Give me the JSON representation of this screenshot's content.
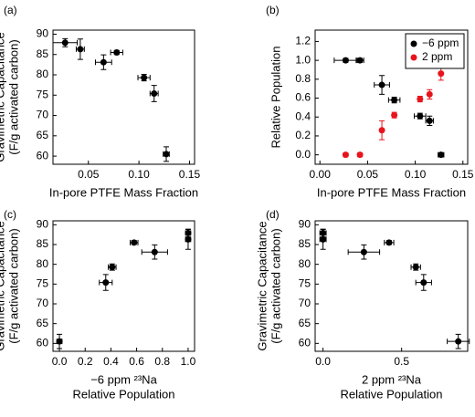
{
  "chart_data": [
    {
      "type": "scatter",
      "panel_label": "(a)",
      "xlabel": [
        "In-pore PTFE Mass Fraction"
      ],
      "ylabel": [
        "Gravimetric Capacitance",
        "(F/g activated carbon)"
      ],
      "xlim": [
        0.015,
        0.155
      ],
      "xticks": [
        0.05,
        {
          "value": 0.1,
          "label": "0.10"
        },
        0.15
      ],
      "ylim": [
        58,
        91
      ],
      "yticks": [
        60,
        65,
        70,
        75,
        80,
        85,
        90
      ],
      "series": [
        {
          "color": "#000000",
          "x": [
            0.027,
            0.042,
            0.065,
            0.078,
            0.105,
            0.115,
            0.127
          ],
          "values": [
            87.9,
            86.3,
            83.1,
            85.5,
            79.3,
            75.4,
            60.5
          ],
          "xerr": [
            0.012,
            0.004,
            0.008,
            0.006,
            0.006,
            0.004,
            0.003
          ],
          "yerr": [
            1.0,
            2.5,
            1.8,
            0.5,
            0.8,
            2.0,
            1.8
          ]
        }
      ]
    },
    {
      "type": "scatter",
      "panel_label": "(b)",
      "xlabel": [
        "In-pore PTFE Mass Fraction"
      ],
      "ylabel": [
        "Relative Population"
      ],
      "xlim": [
        -0.005,
        0.155
      ],
      "xticks": [
        {
          "value": 0,
          "label": "0.00"
        },
        0.05,
        {
          "value": 0.1,
          "label": "0.10"
        },
        0.15
      ],
      "ylim": [
        -0.1,
        1.32
      ],
      "yticks": [
        {
          "value": 0,
          "label": "0.0"
        },
        0.2,
        0.4,
        0.6,
        0.8,
        {
          "value": 1,
          "label": "1.0"
        },
        1.2
      ],
      "legend": "upper right",
      "series": [
        {
          "name": "−6 ppm",
          "color": "#000000",
          "x": [
            0.027,
            0.042,
            0.065,
            0.078,
            0.105,
            0.115,
            0.127
          ],
          "values": [
            1.0,
            1.0,
            0.74,
            0.58,
            0.41,
            0.36,
            0.0
          ],
          "xerr": [
            0.012,
            0.004,
            0.008,
            0.006,
            0.006,
            0.004,
            0.003
          ],
          "yerr": [
            0.02,
            0.02,
            0.1,
            0.03,
            0.03,
            0.05,
            0.02
          ]
        },
        {
          "name": "2 ppm",
          "color": "#e8141b",
          "x": [
            0.027,
            0.042,
            0.065,
            0.078,
            0.105,
            0.115,
            0.127
          ],
          "values": [
            0.0,
            0.0,
            0.26,
            0.42,
            0.59,
            0.64,
            0.86
          ],
          "yerr": [
            0.02,
            0.02,
            0.1,
            0.03,
            0.03,
            0.05,
            0.07
          ]
        }
      ]
    },
    {
      "type": "scatter",
      "panel_label": "(c)",
      "xlabel": [
        "−6 ppm ²³Na",
        "Relative Population"
      ],
      "ylabel": [
        "Gravimetric Capacitance",
        "(F/g activated carbon)"
      ],
      "xlim": [
        -0.05,
        1.05
      ],
      "xticks": [
        {
          "value": 0,
          "label": "0.0"
        },
        0.2,
        0.4,
        0.6,
        0.8,
        {
          "value": 1,
          "label": "1.0"
        }
      ],
      "ylim": [
        58,
        91
      ],
      "yticks": [
        60,
        65,
        70,
        75,
        80,
        85,
        90
      ],
      "series": [
        {
          "color": "#000000",
          "x": [
            1.0,
            1.0,
            0.74,
            0.58,
            0.41,
            0.36,
            0.0
          ],
          "values": [
            87.9,
            86.3,
            83.1,
            85.5,
            79.3,
            75.4,
            60.5
          ],
          "xerr": [
            0.02,
            0.02,
            0.1,
            0.03,
            0.03,
            0.05,
            0.02
          ],
          "yerr": [
            1.0,
            2.5,
            1.8,
            0.5,
            0.8,
            2.0,
            1.8
          ]
        }
      ]
    },
    {
      "type": "scatter",
      "panel_label": "(d)",
      "xlabel": [
        "2 ppm ²³Na",
        "Relative Population"
      ],
      "ylabel": [
        "Gravimetric Capacitance",
        "(F/g activated carbon)"
      ],
      "xlim": [
        -0.05,
        0.92
      ],
      "xticks": [
        {
          "value": 0,
          "label": "0.0"
        },
        0.5
      ],
      "ylim": [
        58,
        91
      ],
      "yticks": [
        60,
        65,
        70,
        75,
        80,
        85,
        90
      ],
      "series": [
        {
          "color": "#000000",
          "x": [
            0.0,
            0.0,
            0.26,
            0.42,
            0.59,
            0.64,
            0.86
          ],
          "values": [
            87.9,
            86.3,
            83.1,
            85.5,
            79.3,
            75.4,
            60.5
          ],
          "xerr": [
            0.02,
            0.02,
            0.1,
            0.03,
            0.03,
            0.05,
            0.07
          ],
          "yerr": [
            1.0,
            2.5,
            1.8,
            0.5,
            0.8,
            2.0,
            1.8
          ]
        }
      ]
    }
  ]
}
